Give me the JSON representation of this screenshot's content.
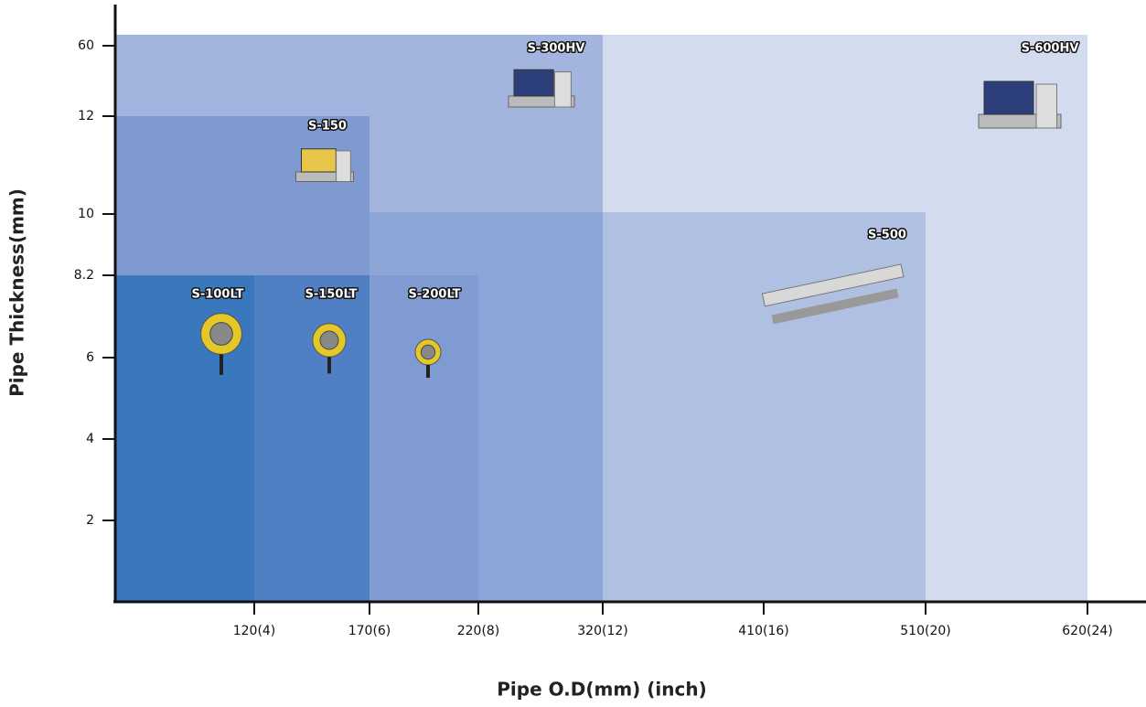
{
  "y_axis": {
    "title": "Pipe Thickness(mm)",
    "ticks": [
      "60",
      "12",
      "10",
      "8.2",
      "6",
      "4",
      "2"
    ]
  },
  "x_axis": {
    "title": "Pipe O.D(mm) (inch)",
    "ticks": [
      "120(4)",
      "170(6)",
      "220(8)",
      "320(12)",
      "410(16)",
      "510(20)",
      "620(24)"
    ]
  },
  "products": [
    {
      "name": "S-600HV"
    },
    {
      "name": "S-300HV"
    },
    {
      "name": "S-500"
    },
    {
      "name": "S-150"
    },
    {
      "name": "S-200LT"
    },
    {
      "name": "S-150LT"
    },
    {
      "name": "S-100LT"
    }
  ]
}
